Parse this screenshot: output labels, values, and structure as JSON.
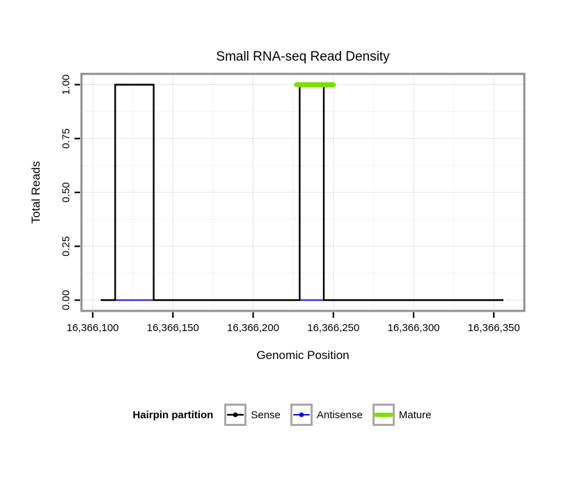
{
  "chart_data": {
    "type": "line",
    "title": "Small RNA-seq Read Density",
    "xlabel": "Genomic Position",
    "ylabel": "Total Reads",
    "legend_title": "Hairpin partition",
    "legend_position": "bottom",
    "grid": true,
    "xlim": [
      16366093,
      16366369
    ],
    "ylim": [
      -0.05,
      1.05
    ],
    "x_ticks": [
      {
        "value": 16366100,
        "label": "16,366,100"
      },
      {
        "value": 16366150,
        "label": "16,366,150"
      },
      {
        "value": 16366200,
        "label": "16,366,200"
      },
      {
        "value": 16366250,
        "label": "16,366,250"
      },
      {
        "value": 16366300,
        "label": "16,366,300"
      },
      {
        "value": 16366350,
        "label": "16,366,350"
      }
    ],
    "y_ticks": [
      {
        "value": 0,
        "label": "0.00"
      },
      {
        "value": 0.25,
        "label": "0.25"
      },
      {
        "value": 0.5,
        "label": "0.50"
      },
      {
        "value": 0.75,
        "label": "0.75"
      },
      {
        "value": 1,
        "label": "1.00"
      }
    ],
    "series": [
      {
        "name": "Sense",
        "color": "#000000",
        "line_width": 2.4,
        "points": [
          [
            16366105,
            0
          ],
          [
            16366114,
            0
          ],
          [
            16366114,
            1
          ],
          [
            16366138,
            1
          ],
          [
            16366138,
            0
          ],
          [
            16366229,
            0
          ],
          [
            16366229,
            1
          ],
          [
            16366244,
            1
          ],
          [
            16366244,
            0
          ],
          [
            16366356,
            0
          ]
        ]
      },
      {
        "name": "Antisense",
        "color": "#0E0EE6",
        "line_width": 2,
        "points": [
          [
            16366105,
            0
          ],
          [
            16366356,
            0
          ]
        ]
      },
      {
        "name": "Mature",
        "color": "#7CDF00",
        "line_width": 7,
        "points": [
          [
            16366227,
            1
          ],
          [
            16366250,
            1
          ]
        ]
      }
    ]
  }
}
